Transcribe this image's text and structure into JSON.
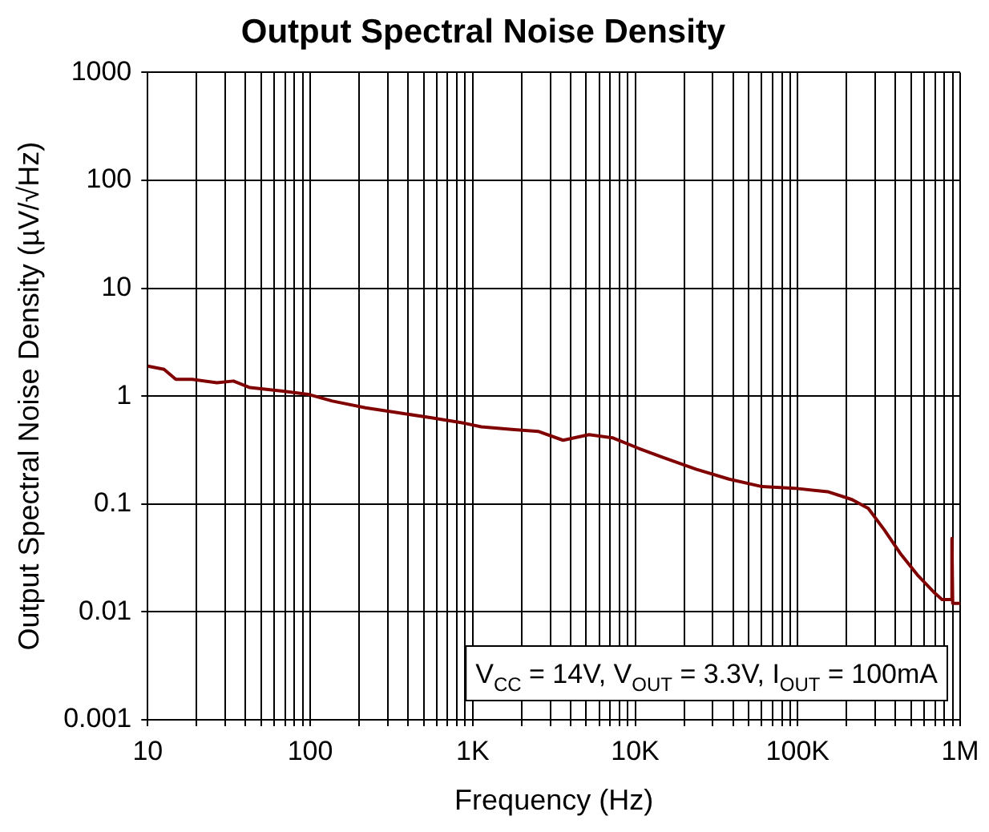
{
  "chart_data": {
    "type": "line",
    "title": "Output Spectral Noise Density",
    "xlabel": "Frequency (Hz)",
    "ylabel": "Output Spectral Noise Density (µV/√Hz)",
    "log": "xy",
    "grid": true,
    "legend": false,
    "marker": "none",
    "line_style": "solid",
    "xlim": [
      10,
      1000000
    ],
    "xticks": [
      {
        "value": 10,
        "label": "10"
      },
      {
        "value": 20,
        "label": null
      },
      {
        "value": 30,
        "label": null
      },
      {
        "value": 40,
        "label": null
      },
      {
        "value": 50,
        "label": null
      },
      {
        "value": 60,
        "label": null
      },
      {
        "value": 70,
        "label": null
      },
      {
        "value": 80,
        "label": null
      },
      {
        "value": 90,
        "label": null
      },
      {
        "value": 100,
        "label": "100"
      },
      {
        "value": 200,
        "label": null
      },
      {
        "value": 300,
        "label": null
      },
      {
        "value": 400,
        "label": null
      },
      {
        "value": 500,
        "label": null
      },
      {
        "value": 600,
        "label": null
      },
      {
        "value": 700,
        "label": null
      },
      {
        "value": 800,
        "label": null
      },
      {
        "value": 900,
        "label": null
      },
      {
        "value": 1000,
        "label": "1K"
      },
      {
        "value": 2000,
        "label": null
      },
      {
        "value": 3000,
        "label": null
      },
      {
        "value": 4000,
        "label": null
      },
      {
        "value": 5000,
        "label": null
      },
      {
        "value": 6000,
        "label": null
      },
      {
        "value": 7000,
        "label": null
      },
      {
        "value": 8000,
        "label": null
      },
      {
        "value": 9000,
        "label": null
      },
      {
        "value": 10000,
        "label": "10K"
      },
      {
        "value": 20000,
        "label": null
      },
      {
        "value": 30000,
        "label": null
      },
      {
        "value": 40000,
        "label": null
      },
      {
        "value": 50000,
        "label": null
      },
      {
        "value": 60000,
        "label": null
      },
      {
        "value": 70000,
        "label": null
      },
      {
        "value": 80000,
        "label": null
      },
      {
        "value": 90000,
        "label": null
      },
      {
        "value": 100000,
        "label": "100K"
      },
      {
        "value": 200000,
        "label": null
      },
      {
        "value": 300000,
        "label": null
      },
      {
        "value": 400000,
        "label": null
      },
      {
        "value": 500000,
        "label": null
      },
      {
        "value": 600000,
        "label": null
      },
      {
        "value": 700000,
        "label": null
      },
      {
        "value": 800000,
        "label": null
      },
      {
        "value": 900000,
        "label": null
      },
      {
        "value": 1000000,
        "label": "1M"
      }
    ],
    "ylim": [
      0.001,
      1000
    ],
    "yticks": [
      0.001,
      0.01,
      0.1,
      1,
      10,
      100,
      1000
    ],
    "annotations": [
      "V$_{CC}$ = 14V, V$_{OUT}$ = 3.3V, I$_{OUT}$ = 100mA"
    ],
    "x": [
      10,
      12.6,
      14.9,
      18.8,
      26.7,
      33.7,
      42.6,
      68,
      97,
      137,
      219,
      350,
      559,
      893,
      1130,
      1800,
      2550,
      3600,
      5200,
      7300,
      10400,
      14800,
      23700,
      37800,
      60400,
      96000,
      153000,
      216000,
      272000,
      343000,
      433000,
      546000,
      690000,
      774000,
      830000,
      880000,
      890000,
      900000,
      1000000
    ],
    "series": [
      {
        "color": "#800000",
        "values": [
          1.9,
          1.77,
          1.43,
          1.43,
          1.33,
          1.38,
          1.2,
          1.11,
          1.04,
          0.9,
          0.78,
          0.7,
          0.63,
          0.56,
          0.52,
          0.49,
          0.47,
          0.39,
          0.44,
          0.41,
          0.33,
          0.27,
          0.21,
          0.17,
          0.145,
          0.14,
          0.13,
          0.11,
          0.091,
          0.057,
          0.034,
          0.022,
          0.0152,
          0.013,
          0.013,
          0.013,
          0.048,
          0.012,
          0.012
        ]
      }
    ]
  }
}
